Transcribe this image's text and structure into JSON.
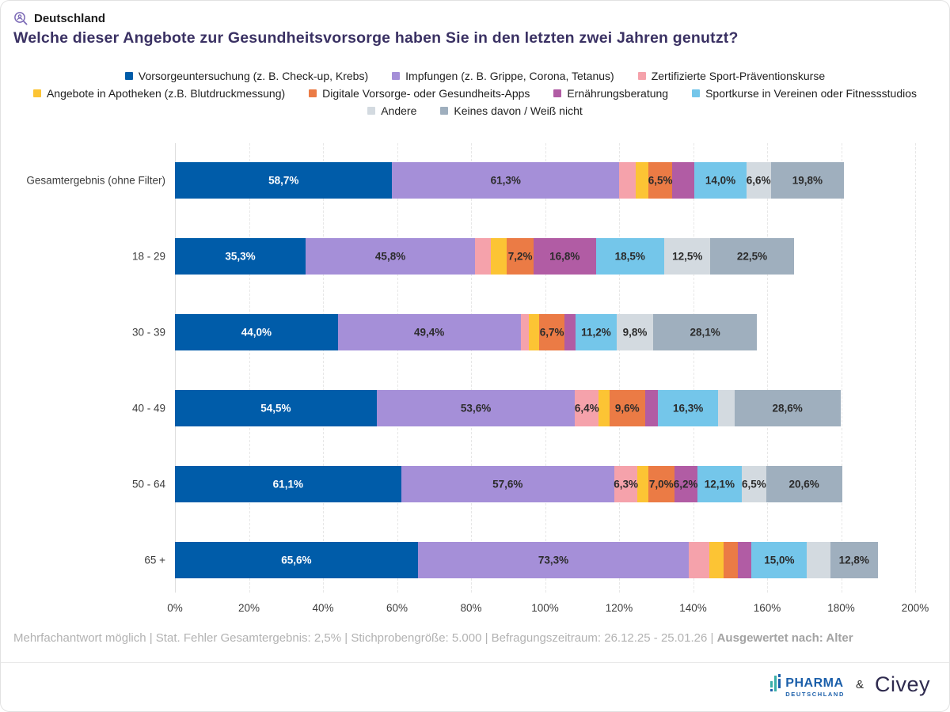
{
  "header": {
    "region": "Deutschland",
    "title": "Welche dieser Angebote zur Gesundheitsvorsorge haben Sie in den letzten zwei Jahren genutzt?"
  },
  "legend_lines": [
    [
      0,
      1,
      2
    ],
    [
      3,
      4,
      5,
      6
    ],
    [
      7,
      8
    ]
  ],
  "chart_data": {
    "type": "bar",
    "stacked": true,
    "orientation": "horizontal",
    "unit": "%",
    "xlim": [
      0,
      200
    ],
    "x_ticks": [
      "0%",
      "20%",
      "40%",
      "60%",
      "80%",
      "100%",
      "120%",
      "140%",
      "160%",
      "180%",
      "200%"
    ],
    "grid": "dashed-vertical",
    "legend_position": "top-center",
    "series": [
      {
        "name": "Vorsorgeuntersuchung (z. B. Check-up, Krebs)",
        "color": "#005CA9"
      },
      {
        "name": "Impfungen (z. B. Grippe, Corona, Tetanus)",
        "color": "#A58FD8"
      },
      {
        "name": "Zertifizierte Sport-Präventionskurse",
        "color": "#F5A2AB"
      },
      {
        "name": "Angebote in Apotheken (z.B. Blutdruckmessung)",
        "color": "#FCC434"
      },
      {
        "name": "Digitale Vorsorge- oder Gesundheits-Apps",
        "color": "#EB7B45"
      },
      {
        "name": "Ernährungsberatung",
        "color": "#B15CA4"
      },
      {
        "name": "Sportkurse in Vereinen oder Fitnessstudios",
        "color": "#74C6EA"
      },
      {
        "name": "Andere",
        "color": "#D3DAE0"
      },
      {
        "name": "Keines davon / Weiß nicht",
        "color": "#9FAFBE"
      }
    ],
    "categories": [
      "Gesamtergebnis (ohne Filter)",
      "18 - 29",
      "30 - 39",
      "40 - 49",
      "50 - 64",
      "65 +"
    ],
    "rows": [
      {
        "category": "Gesamtergebnis (ohne Filter)",
        "values": [
          58.7,
          61.3,
          4.6,
          3.3,
          6.5,
          6.0,
          14.0,
          6.6,
          19.8
        ],
        "labels": [
          "58,7%",
          "61,3%",
          null,
          null,
          "6,5%",
          null,
          "14,0%",
          "6,6%",
          "19,8%"
        ]
      },
      {
        "category": "18 - 29",
        "values": [
          35.3,
          45.8,
          4.3,
          4.3,
          7.2,
          16.8,
          18.5,
          12.5,
          22.5
        ],
        "labels": [
          "35,3%",
          "45,8%",
          null,
          null,
          "7,2%",
          "16,8%",
          "18,5%",
          "12,5%",
          "22,5%"
        ]
      },
      {
        "category": "30 - 39",
        "values": [
          44.0,
          49.4,
          2.3,
          2.8,
          6.7,
          3.0,
          11.2,
          9.8,
          28.1
        ],
        "labels": [
          "44,0%",
          "49,4%",
          null,
          null,
          "6,7%",
          null,
          "11,2%",
          "9,8%",
          "28,1%"
        ]
      },
      {
        "category": "40 - 49",
        "values": [
          54.5,
          53.6,
          6.4,
          2.9,
          9.6,
          3.5,
          16.3,
          4.4,
          28.6
        ],
        "labels": [
          "54,5%",
          "53,6%",
          "6,4%",
          null,
          "9,6%",
          null,
          "16,3%",
          null,
          "28,6%"
        ]
      },
      {
        "category": "50 - 64",
        "values": [
          61.1,
          57.6,
          6.3,
          2.9,
          7.0,
          6.2,
          12.1,
          6.5,
          20.6
        ],
        "labels": [
          "61,1%",
          "57,6%",
          "6,3%",
          null,
          "7,0%",
          "6,2%",
          "12,1%",
          "6,5%",
          "20,6%"
        ]
      },
      {
        "category": "65 +",
        "values": [
          65.6,
          73.3,
          5.5,
          3.8,
          4.0,
          3.6,
          15.0,
          6.3,
          12.8
        ],
        "labels": [
          "65,6%",
          "73,3%",
          null,
          null,
          null,
          null,
          "15,0%",
          null,
          "12,8%"
        ]
      }
    ]
  },
  "footer": {
    "text_normal": "Mehrfachantwort möglich | Stat. Fehler Gesamtergebnis: 2,5% | Stichprobengröße: 5.000 | Befragungszeitraum: 26.12.25 - 25.01.26 | ",
    "text_bold": "Ausgewertet nach: Alter"
  },
  "logos": {
    "pharma_name": "PHARMA",
    "pharma_sub": "DEUTSCHLAND",
    "ampersand": "&",
    "civey": "Civey"
  },
  "colors": {
    "title": "#3a3163",
    "region_icon": "#7a68b5",
    "footer_text": "#b2b2b2"
  }
}
